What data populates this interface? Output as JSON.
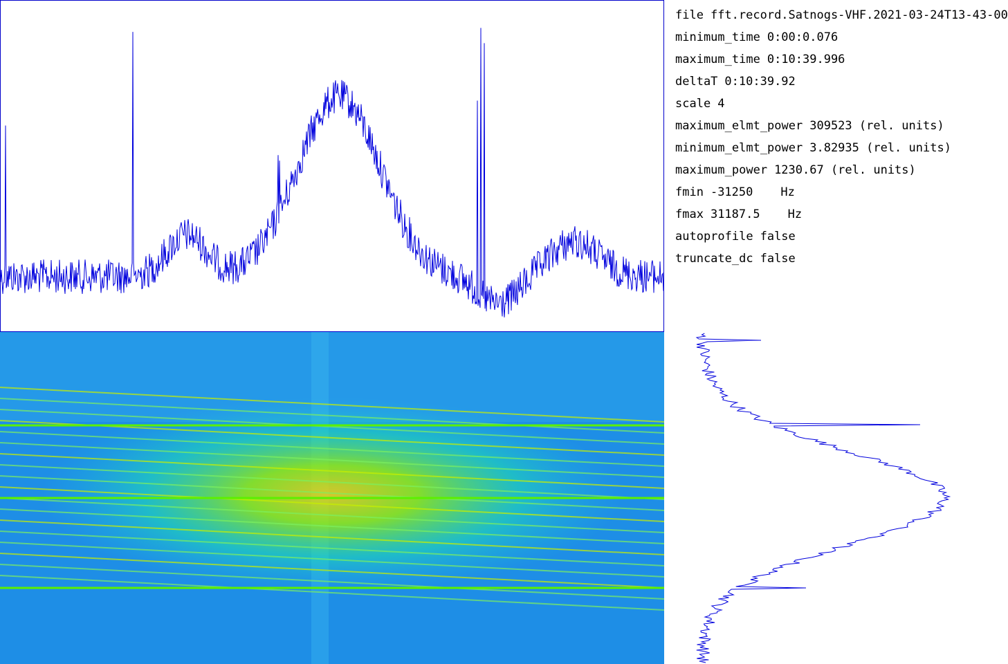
{
  "info": [
    {
      "key": "file",
      "value": "fft.record.Satnogs-VHF.2021-03-24T13-43-00"
    },
    {
      "key": "minimum_time",
      "value": "0:00:0.076"
    },
    {
      "key": "maximum_time",
      "value": "0:10:39.996"
    },
    {
      "key": "deltaT",
      "value": "0:10:39.92"
    },
    {
      "key": "scale",
      "value": "4"
    },
    {
      "key": "maximum_elmt_power",
      "value": "309523 (rel. units)"
    },
    {
      "key": "minimum_elmt_power",
      "value": "3.82935 (rel. units)"
    },
    {
      "key": "maximum_power",
      "value": "1230.67 (rel. units)"
    },
    {
      "key": "fmin",
      "value": "-31250",
      "unit": "Hz"
    },
    {
      "key": "fmax",
      "value": "31187.5",
      "unit": "Hz"
    },
    {
      "key": "autoprofile",
      "value": "false"
    },
    {
      "key": "truncate_dc",
      "value": "false"
    }
  ]
}
